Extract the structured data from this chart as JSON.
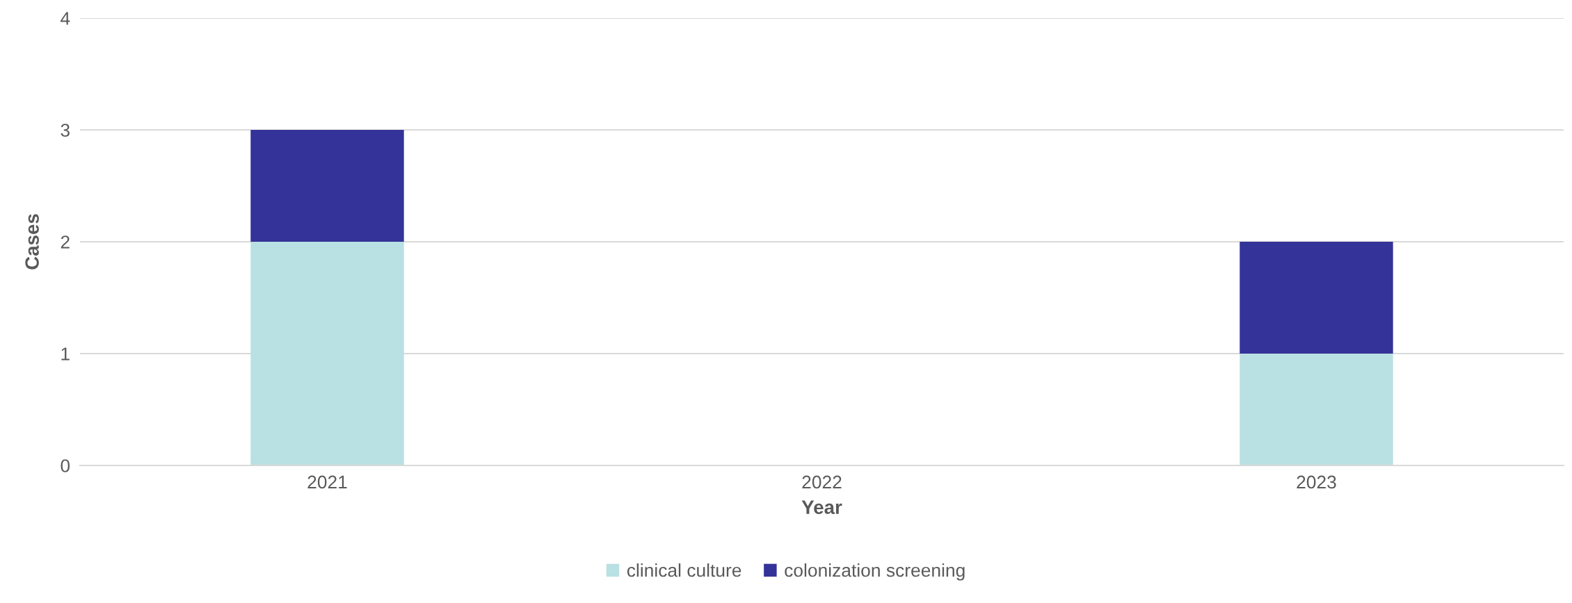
{
  "chart_data": {
    "type": "bar",
    "stacked": true,
    "xlabel": "Year",
    "ylabel": "Cases",
    "categories": [
      "2021",
      "2022",
      "2023"
    ],
    "series": [
      {
        "name": "clinical culture",
        "color": "#b9e0e2",
        "values": [
          2,
          0,
          1
        ]
      },
      {
        "name": "colonization screening",
        "color": "#343399",
        "values": [
          1,
          0,
          1
        ]
      }
    ],
    "ylim": [
      0,
      4
    ],
    "yticks": [
      0,
      1,
      2,
      3,
      4
    ],
    "grid": "y",
    "legend": "bottom"
  }
}
